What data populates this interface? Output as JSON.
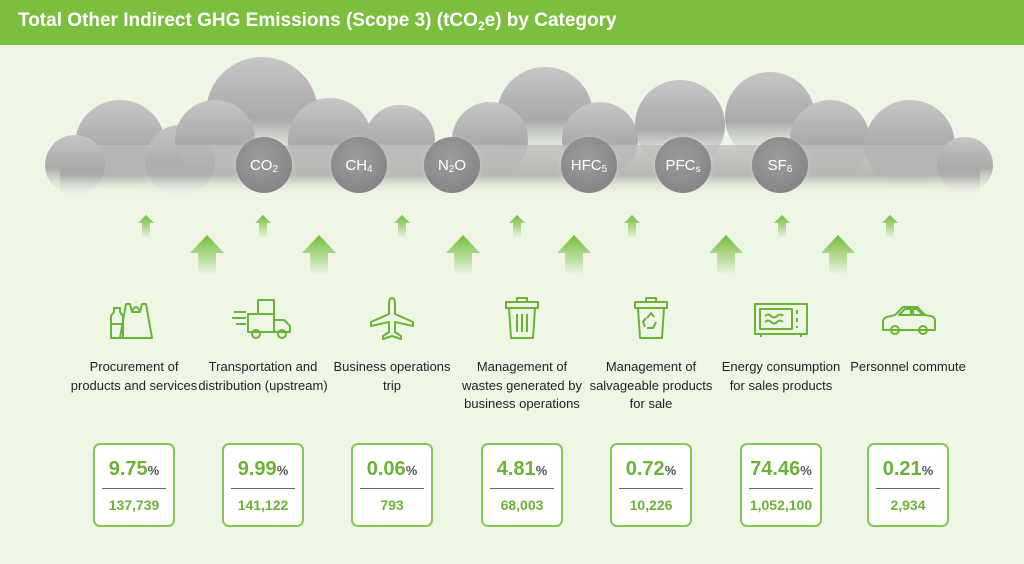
{
  "title": {
    "before": "Total Other Indirect GHG Emissions (Scope 3) (tCO",
    "sub": "2",
    "after": "e) by Category"
  },
  "gases": [
    {
      "base": "CO",
      "sub": "2"
    },
    {
      "base": "CH",
      "sub": "4"
    },
    {
      "base": "N",
      "sub": "2",
      "after": "O"
    },
    {
      "base": "HFC",
      "sub": "5"
    },
    {
      "base": "PFC",
      "sub": "s"
    },
    {
      "base": "SF",
      "sub": "6"
    }
  ],
  "categories": [
    {
      "label": "Procurement of products and services",
      "icon": "bottle-bag-icon",
      "percent": "9.75",
      "amount": "137,739"
    },
    {
      "label": "Transportation and distribution (upstream)",
      "icon": "delivery-truck-icon",
      "percent": "9.99",
      "amount": "141,122"
    },
    {
      "label": "Business operations trip",
      "icon": "airplane-icon",
      "percent": "0.06",
      "amount": "793"
    },
    {
      "label": "Management of wastes generated by business operations",
      "icon": "trash-bin-icon",
      "percent": "4.81",
      "amount": "68,003"
    },
    {
      "label": "Management of salvageable products for sale",
      "icon": "recycle-bin-icon",
      "percent": "0.72",
      "amount": "10,226"
    },
    {
      "label": "Energy consumption for sales products",
      "icon": "microwave-icon",
      "percent": "74.46",
      "amount": "1,052,100"
    },
    {
      "label": "Personnel commute",
      "icon": "car-icon",
      "percent": "0.21",
      "amount": "2,934"
    }
  ],
  "percent_unit": "%",
  "colors": {
    "header": "#7cbf3e",
    "accent": "#6bb337",
    "card_border": "#86c654",
    "background": "#eef6e6"
  }
}
